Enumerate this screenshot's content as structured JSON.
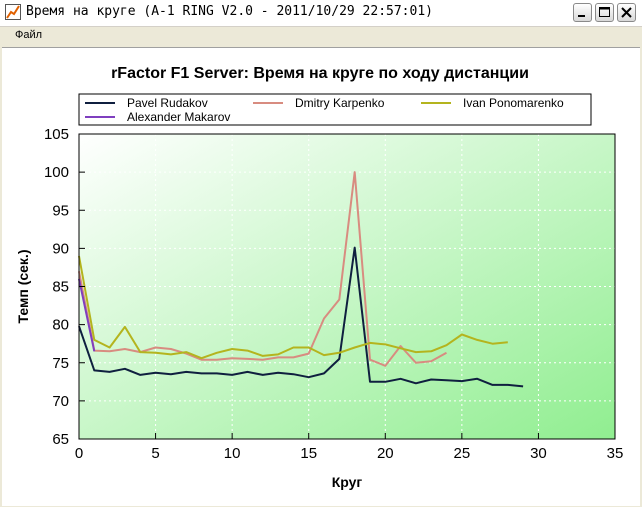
{
  "window": {
    "title": "Время на круге (A-1 RING V2.0 - 2011/10/29 22:57:01)"
  },
  "menu": {
    "file_label": "Файл"
  },
  "chart_data": {
    "type": "line",
    "title": "rFactor F1 Server: Время на круге по ходу дистанции",
    "xlabel": "Круг",
    "ylabel": "Темп (сек.)",
    "xlim": [
      0,
      35
    ],
    "ylim": [
      65,
      105
    ],
    "xticks": [
      0,
      5,
      10,
      15,
      20,
      25,
      30,
      35
    ],
    "yticks": [
      65,
      70,
      75,
      80,
      85,
      90,
      95,
      100,
      105
    ],
    "grid": true,
    "legend_position": "top",
    "background_gradient": [
      "#ffffff",
      "#90ee90"
    ],
    "series": [
      {
        "name": "Pavel Rudakov",
        "color": "#0f1f3f",
        "x": [
          0,
          1,
          2,
          3,
          4,
          5,
          6,
          7,
          8,
          9,
          10,
          11,
          12,
          13,
          14,
          15,
          16,
          17,
          18,
          19,
          20,
          21,
          22,
          23,
          24,
          25,
          26,
          27,
          28,
          29
        ],
        "y": [
          79.8,
          74.0,
          73.8,
          74.2,
          73.4,
          73.7,
          73.5,
          73.8,
          73.6,
          73.6,
          73.4,
          73.8,
          73.4,
          73.7,
          73.5,
          73.1,
          73.6,
          75.5,
          90.1,
          72.5,
          72.5,
          72.9,
          72.3,
          72.8,
          72.7,
          72.6,
          72.9,
          72.1,
          72.1,
          71.9
        ]
      },
      {
        "name": "Dmitry Karpenko",
        "color": "#d88c80",
        "x": [
          0,
          1,
          2,
          3,
          4,
          5,
          6,
          7,
          8,
          9,
          10,
          11,
          12,
          13,
          14,
          15,
          16,
          17,
          18,
          19,
          20,
          21,
          22,
          23,
          24
        ],
        "y": [
          87.0,
          76.6,
          76.5,
          76.8,
          76.4,
          77.0,
          76.8,
          76.2,
          75.4,
          75.4,
          75.6,
          75.5,
          75.4,
          75.7,
          75.7,
          76.2,
          80.8,
          83.3,
          100.0,
          75.4,
          74.6,
          77.2,
          75.0,
          75.2,
          76.3
        ]
      },
      {
        "name": "Ivan Ponomarenko",
        "color": "#b4b41e",
        "x": [
          0,
          1,
          2,
          3,
          4,
          5,
          6,
          7,
          8,
          9,
          10,
          11,
          12,
          13,
          14,
          15,
          16,
          17,
          18,
          19,
          20,
          21,
          22,
          23,
          24,
          25,
          26,
          27,
          28
        ],
        "y": [
          89.0,
          78.0,
          77.0,
          79.7,
          76.4,
          76.3,
          76.1,
          76.4,
          75.6,
          76.3,
          76.8,
          76.6,
          75.9,
          76.1,
          77.0,
          77.0,
          76.0,
          76.3,
          77.0,
          77.6,
          77.4,
          76.9,
          76.4,
          76.5,
          77.3,
          78.7,
          78.0,
          77.5,
          77.7
        ]
      },
      {
        "name": "Alexander Makarov",
        "color": "#7f3fbf",
        "x": [
          0,
          1
        ],
        "y": [
          86.0,
          76.5
        ]
      }
    ]
  }
}
